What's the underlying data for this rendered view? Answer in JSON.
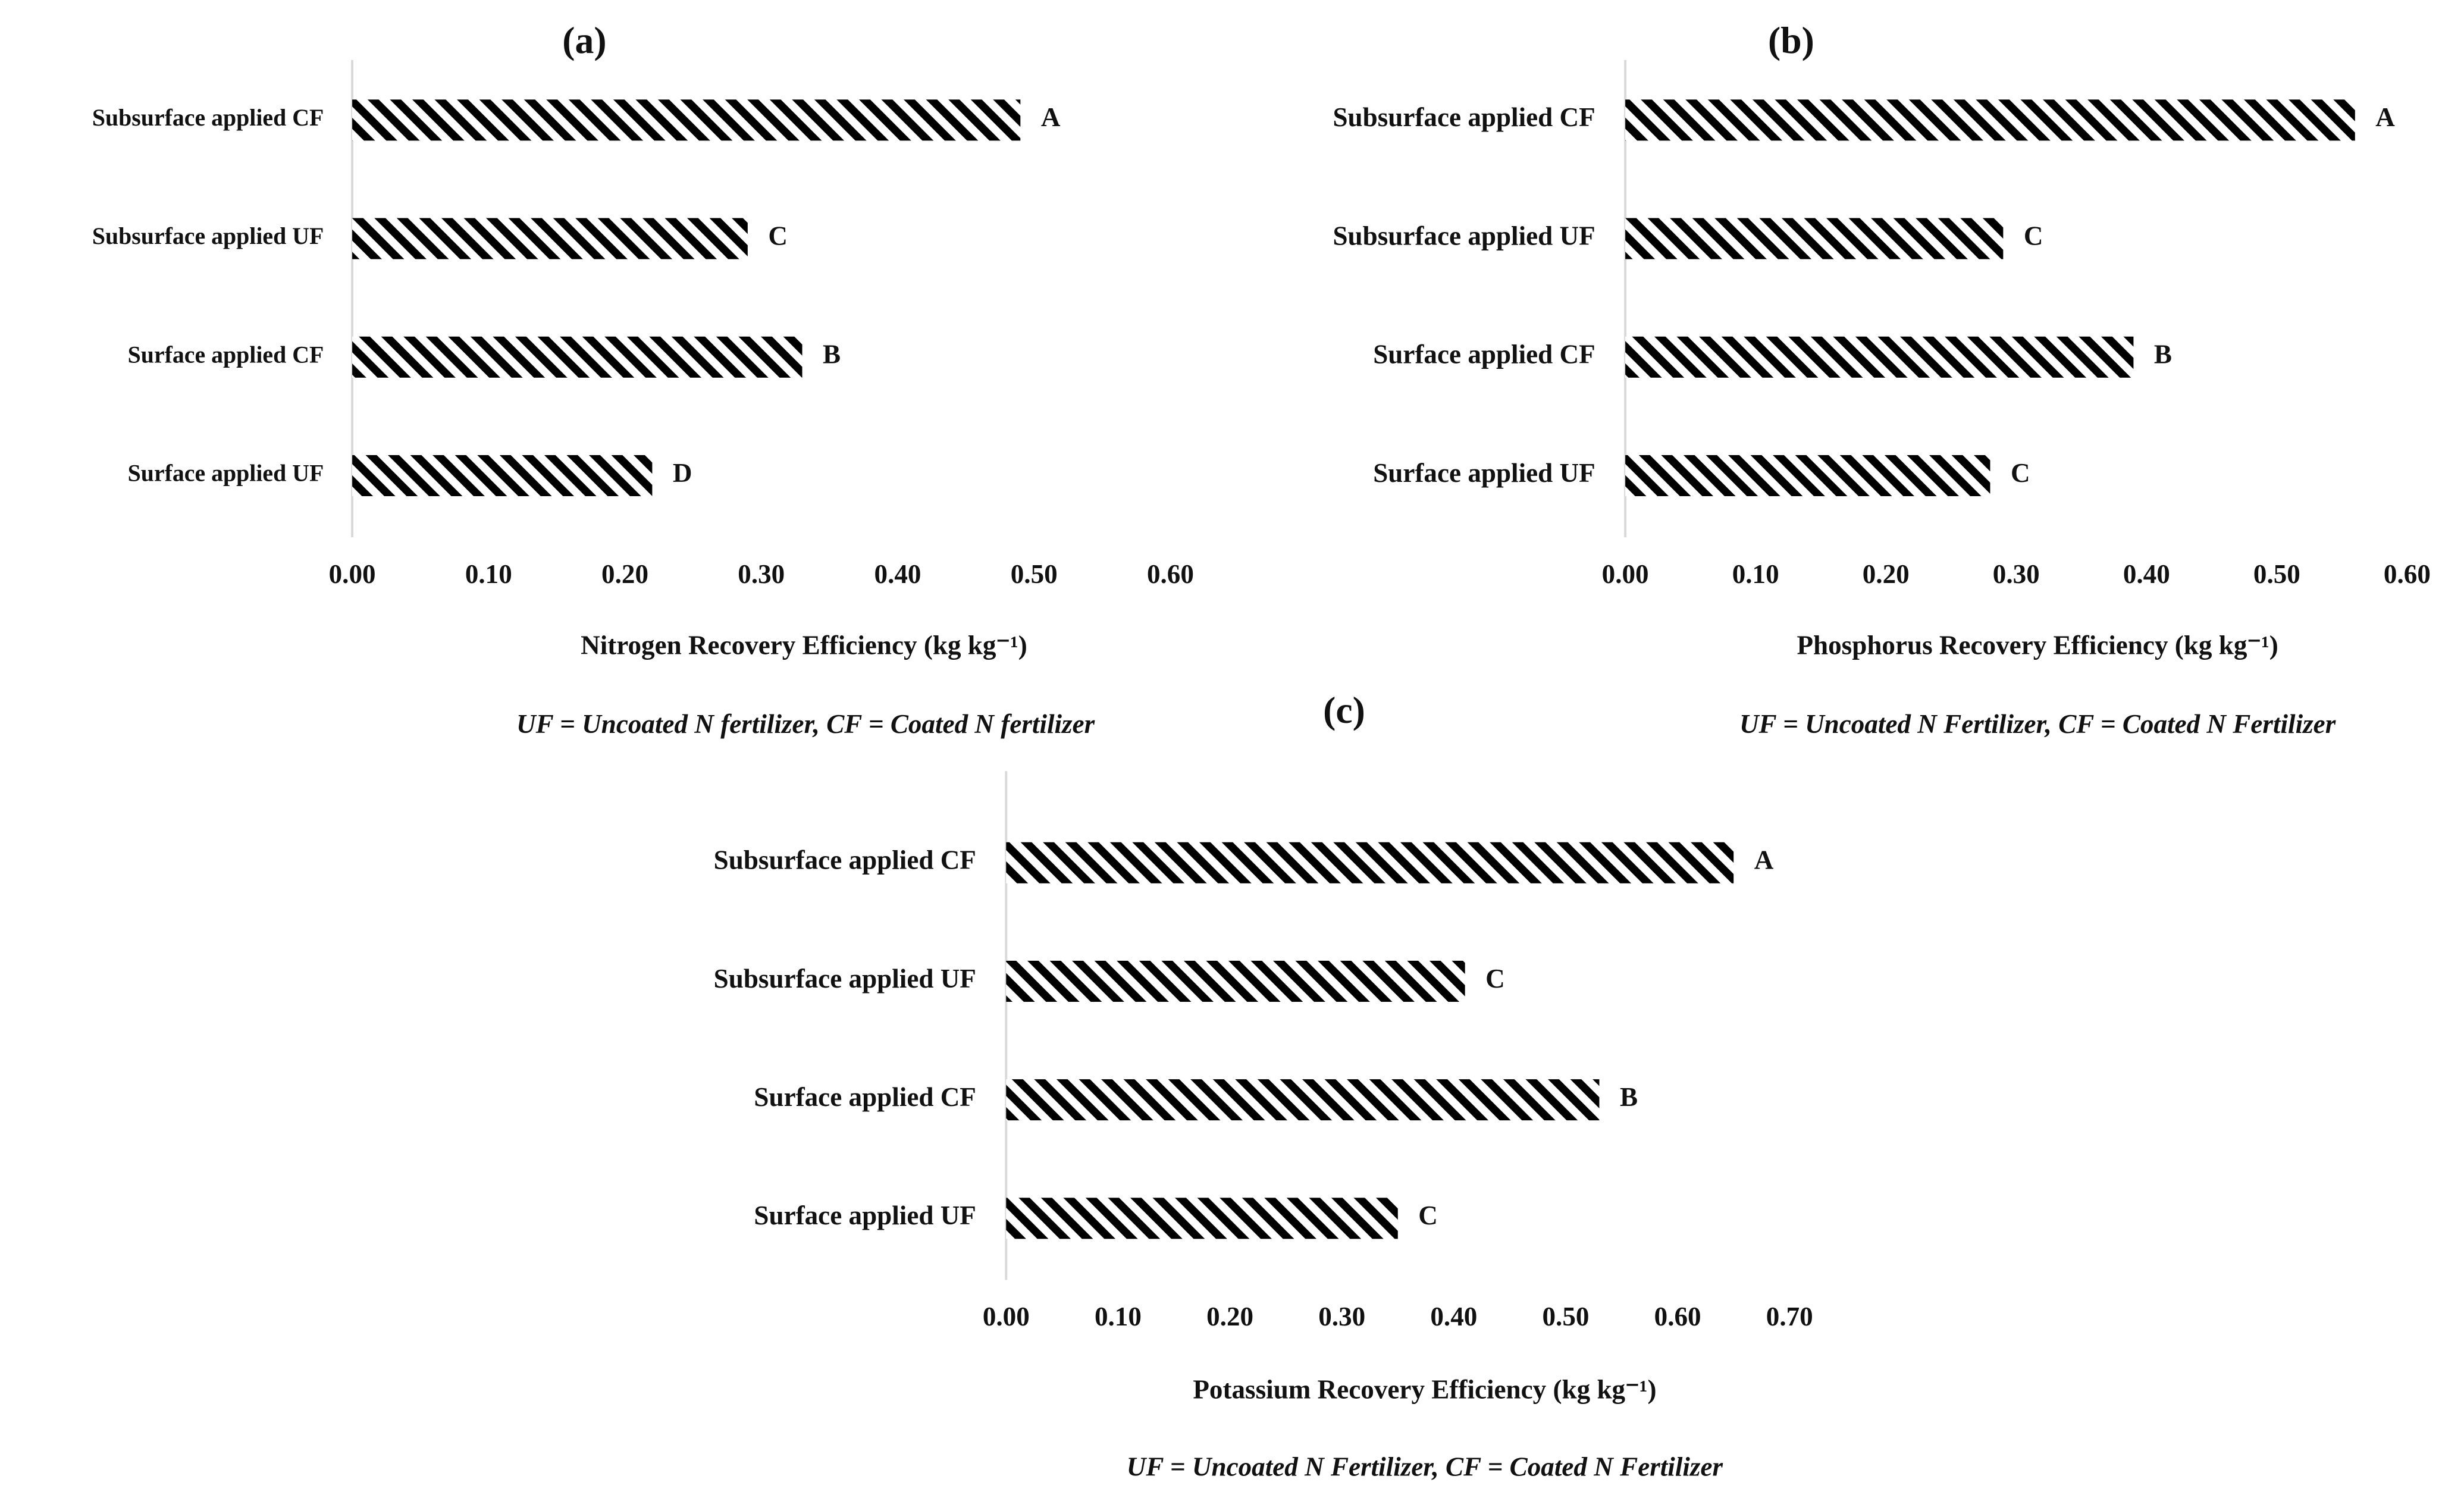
{
  "chart_data": [
    {
      "type": "bar",
      "orientation": "horizontal",
      "title": "(a)",
      "categories": [
        "Subsurface applied CF",
        "Subsurface applied UF",
        "Surface applied CF",
        "Surface applied UF"
      ],
      "values": [
        0.49,
        0.29,
        0.33,
        0.22
      ],
      "annotations": [
        "A",
        "C",
        "B",
        "D"
      ],
      "xlim": [
        0,
        0.6
      ],
      "xticks": [
        {
          "value": 0,
          "label": "0.00"
        },
        {
          "value": 0.1,
          "label": "0.10"
        },
        {
          "value": 0.2,
          "label": "0.20"
        },
        {
          "value": 0.3,
          "label": "0.30"
        },
        {
          "value": 0.4,
          "label": "0.40"
        },
        {
          "value": 0.5,
          "label": "0.50"
        },
        {
          "value": 0.6,
          "label": "0.60"
        }
      ],
      "x_label": "Nitrogen Recovery Efficiency (kg kg⁻¹)",
      "note": "UF = Uncoated N fertilizer, CF = Coated N fertilizer",
      "color": "#000000",
      "pattern": "hatch"
    },
    {
      "type": "bar",
      "orientation": "horizontal",
      "title": "(b)",
      "categories": [
        "Subsurface applied CF",
        "Subsurface applied UF",
        "Surface applied CF",
        "Surface applied UF"
      ],
      "values": [
        0.56,
        0.29,
        0.39,
        0.28
      ],
      "annotations": [
        "A",
        "C",
        "B",
        "C"
      ],
      "xlim": [
        0,
        0.6
      ],
      "xticks": [
        {
          "value": 0,
          "label": "0.00"
        },
        {
          "value": 0.1,
          "label": "0.10"
        },
        {
          "value": 0.2,
          "label": "0.20"
        },
        {
          "value": 0.3,
          "label": "0.30"
        },
        {
          "value": 0.4,
          "label": "0.40"
        },
        {
          "value": 0.5,
          "label": "0.50"
        },
        {
          "value": 0.6,
          "label": "0.60"
        }
      ],
      "x_label": "Phosphorus Recovery Efficiency (kg kg⁻¹)",
      "note": "UF = Uncoated N Fertilizer, CF = Coated N Fertilizer",
      "color": "#000000",
      "pattern": "hatch"
    },
    {
      "type": "bar",
      "orientation": "horizontal",
      "title": "(c)",
      "categories": [
        "Subsurface applied CF",
        "Subsurface applied UF",
        "Surface applied CF",
        "Surface applied UF"
      ],
      "values": [
        0.65,
        0.41,
        0.53,
        0.35
      ],
      "annotations": [
        "A",
        "C",
        "B",
        "C"
      ],
      "xlim": [
        0,
        0.7
      ],
      "xticks": [
        {
          "value": 0,
          "label": "0.00"
        },
        {
          "value": 0.1,
          "label": "0.10"
        },
        {
          "value": 0.2,
          "label": "0.20"
        },
        {
          "value": 0.3,
          "label": "0.30"
        },
        {
          "value": 0.4,
          "label": "0.40"
        },
        {
          "value": 0.5,
          "label": "0.50"
        },
        {
          "value": 0.6,
          "label": "0.60"
        },
        {
          "value": 0.7,
          "label": "0.70"
        }
      ],
      "x_label": "Potassium Recovery Efficiency (kg kg⁻¹)",
      "note": "UF = Uncoated N Fertilizer, CF = Coated N Fertilizer",
      "color": "#000000",
      "pattern": "hatch"
    }
  ]
}
